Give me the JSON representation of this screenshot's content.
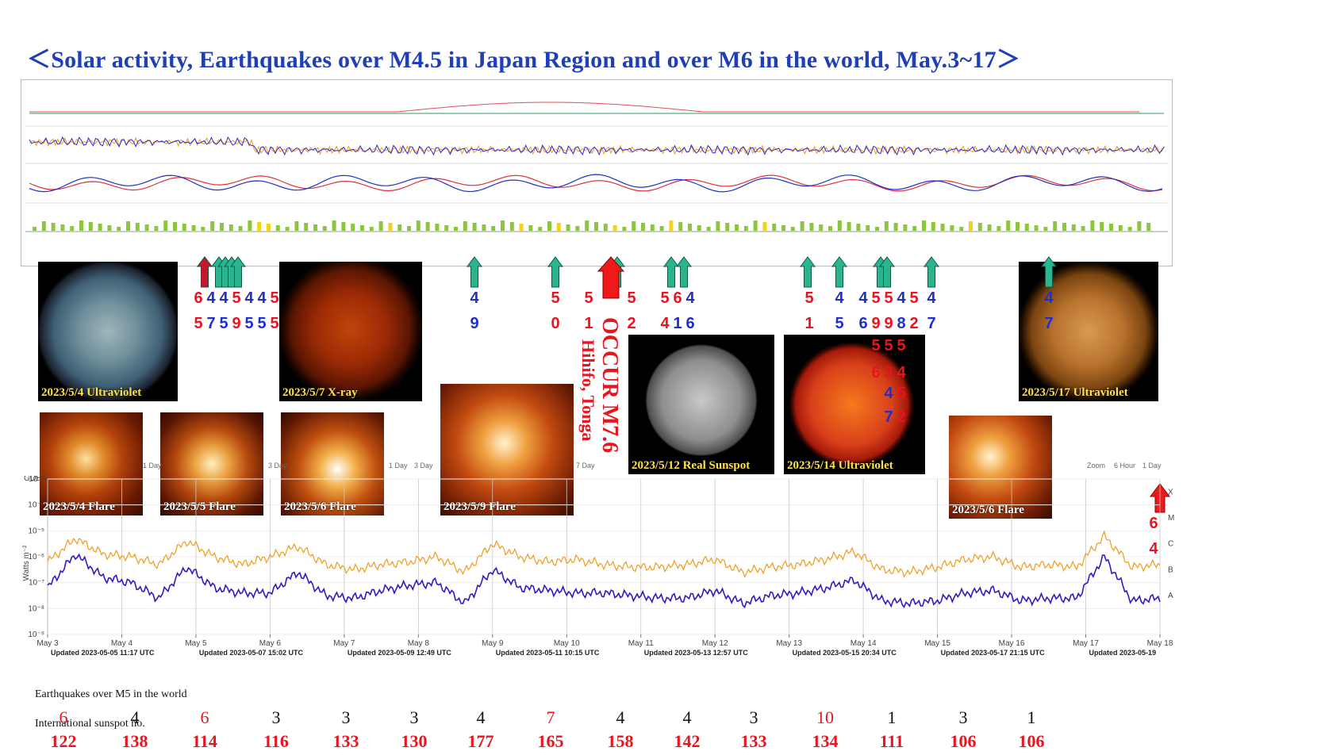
{
  "title": "＜Solar activity, Earthquakes over M4.5 in Japan Region and over M6 in the world,   May.3~17＞",
  "colors": {
    "red": "#e8141e",
    "blue": "#1d2fcf",
    "teal": "#2bb58f",
    "orange": "#f29a1a",
    "purple": "#3a16c2",
    "title": "#1f3fb5",
    "bar_green": "#8cc63f",
    "bar_yellow": "#f2d21a"
  },
  "images": [
    {
      "caption": "2023/5/4 Ultraviolet",
      "kind": "uv-blue"
    },
    {
      "caption": "2023/5/7 X-ray",
      "kind": "xray"
    },
    {
      "caption": "2023/5/12 Real Sunspot",
      "kind": "sunspot"
    },
    {
      "caption": "2023/5/14 Ultraviolet",
      "kind": "uv-red"
    },
    {
      "caption": "2023/5/17 Ultraviolet",
      "kind": "uv-gold"
    },
    {
      "caption": "2023/5/4 Flare",
      "kind": "flare"
    },
    {
      "caption": "2023/5/5 Flare",
      "kind": "flare"
    },
    {
      "caption": "2023/5/6 Flare",
      "kind": "flare"
    },
    {
      "caption": "2023/5/9 Flare",
      "kind": "flare"
    },
    {
      "caption": "2023/5/6 Flare",
      "kind": "flare"
    }
  ],
  "occur": {
    "line1": "OCCUR M7.6",
    "line2": "Hihifo, Tonga"
  },
  "quake_labels": {
    "g1_top": [
      "6",
      "4",
      "4",
      "5",
      "4",
      "4",
      "5"
    ],
    "g1_bot": [
      "5",
      "7",
      "5",
      "9",
      "5",
      "5",
      "5"
    ],
    "g2": [
      "4",
      "9"
    ],
    "g3": [
      "5",
      "0"
    ],
    "g4": [
      "5",
      "1"
    ],
    "g5": [
      "5",
      "2"
    ],
    "g6_top": [
      "5",
      "6",
      "4"
    ],
    "g6_bot": [
      "4",
      "1",
      "6"
    ],
    "g7": [
      "5",
      "1"
    ],
    "g8": [
      "4",
      "5"
    ],
    "g9_top": [
      "4",
      "5",
      "5",
      "4",
      "5"
    ],
    "g9_bot": [
      "6",
      "9",
      "9",
      "8",
      "2"
    ],
    "g10": [
      "4",
      "7"
    ],
    "g11": [
      "4",
      "7"
    ],
    "g12": [
      "6",
      "4"
    ],
    "sun_overlay": [
      "5",
      "5",
      "5",
      "6",
      "3",
      "4",
      "4",
      "5",
      "7",
      "2"
    ]
  },
  "zoom_controls": {
    "a": "Zoom",
    "b": "6 Hour",
    "c": "1 Day",
    "d": "3 Day",
    "e": "7 Day"
  },
  "chart_data": {
    "type": "line",
    "title": "",
    "ylabel": "Watts m⁻²",
    "y_scale": "log",
    "ylim": [
      1e-09,
      0.001
    ],
    "y_ticks": [
      "10⁻⁹",
      "10⁻⁸",
      "10⁻⁷",
      "10⁻⁶",
      "10⁻⁵",
      "10⁻⁴",
      "10⁻³"
    ],
    "flare_classes": [
      "A",
      "B",
      "C",
      "M",
      "X"
    ],
    "source_label": "GOES",
    "x_ticks": [
      "May 3",
      "May 4",
      "May 5",
      "May 6",
      "May 7",
      "May 8",
      "May 9",
      "May 10",
      "May 11",
      "May 12",
      "May 13",
      "May 14",
      "May 15",
      "May 16",
      "May 17",
      "May 18"
    ],
    "updated_labels": [
      "Updated 2023-05-05 11:17 UTC",
      "Updated 2023-05-07 15:02 UTC",
      "Updated 2023-05-09 12:49 UTC",
      "Updated 2023-05-11 10:15 UTC",
      "Updated 2023-05-13 12:57 UTC",
      "Updated 2023-05-15 20:34 UTC",
      "Updated 2023-05-17 21:15 UTC",
      "Updated 2023-05-19"
    ],
    "series": [
      {
        "color": "#f29a1a",
        "log_values": [
          -6.2,
          -5.3,
          -5.9,
          -6.0,
          -6.3,
          -5.4,
          -6.0,
          -6.3,
          -6.0,
          -5.6,
          -6.3,
          -6.5,
          -6.3,
          -6.2,
          -6.0,
          -6.6,
          -5.5,
          -6.0,
          -6.2,
          -6.1,
          -6.3,
          -6.4,
          -6.4,
          -6.3,
          -6.1,
          -6.6,
          -6.4,
          -6.3,
          -6.1,
          -5.8,
          -6.5,
          -6.6,
          -6.4,
          -6.1,
          -6.0,
          -6.4,
          -6.3,
          -6.4,
          -5.2,
          -6.4,
          -6.3
        ]
      },
      {
        "color": "#3a16c2",
        "log_values": [
          -7.2,
          -5.9,
          -6.8,
          -7.0,
          -7.6,
          -6.4,
          -7.2,
          -7.4,
          -7.4,
          -6.6,
          -7.5,
          -7.6,
          -7.3,
          -7.1,
          -7.0,
          -7.8,
          -6.5,
          -7.2,
          -7.3,
          -7.4,
          -7.4,
          -7.5,
          -7.6,
          -7.6,
          -7.3,
          -7.8,
          -7.5,
          -7.4,
          -7.2,
          -6.9,
          -7.7,
          -7.8,
          -7.7,
          -7.4,
          -7.3,
          -7.7,
          -7.6,
          -7.6,
          -6.0,
          -7.7,
          -7.6
        ]
      }
    ]
  },
  "bottom_table": {
    "eq_label": "Earthquakes over M5 in the world",
    "ss_label": "International sunspot no.",
    "earthquakes": [
      {
        "v": "6",
        "red": true
      },
      {
        "v": "4",
        "red": false
      },
      {
        "v": "6",
        "red": true
      },
      {
        "v": "3",
        "red": false
      },
      {
        "v": "3",
        "red": false
      },
      {
        "v": "3",
        "red": false
      },
      {
        "v": "4",
        "red": false
      },
      {
        "v": "7",
        "red": true
      },
      {
        "v": "4",
        "red": false
      },
      {
        "v": "4",
        "red": false
      },
      {
        "v": "3",
        "red": false
      },
      {
        "v": "10",
        "red": true
      },
      {
        "v": "1",
        "red": false
      },
      {
        "v": "3",
        "red": false
      },
      {
        "v": "1",
        "red": false
      }
    ],
    "sunspots": [
      "122",
      "138",
      "114",
      "116",
      "133",
      "130",
      "177",
      "165",
      "158",
      "142",
      "133",
      "134",
      "111",
      "106",
      "106"
    ]
  }
}
